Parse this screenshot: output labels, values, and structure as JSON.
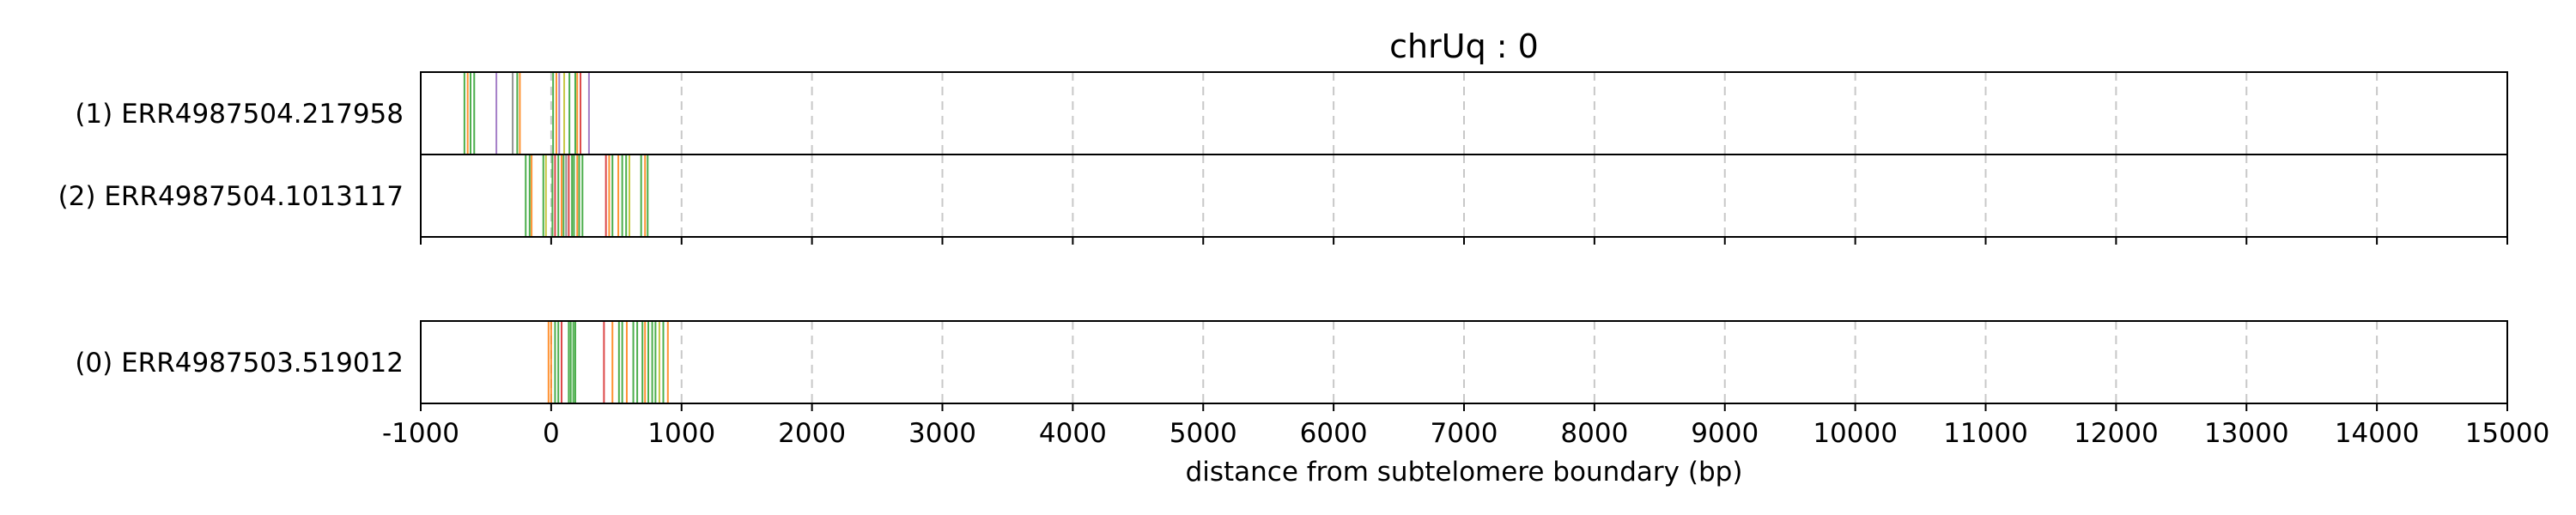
{
  "chart_data": {
    "type": "event-track",
    "title": "chrUq : 0",
    "xlabel": "distance from subtelomere boundary (bp)",
    "xlim": [
      -1000,
      15000
    ],
    "xticks": [
      "-1000",
      "0",
      "1000",
      "2000",
      "3000",
      "4000",
      "5000",
      "6000",
      "7000",
      "8000",
      "9000",
      "10000",
      "11000",
      "12000",
      "13000",
      "14000",
      "15000"
    ],
    "grid": "vertical dashed",
    "colors": {
      "green": "#2ca02c",
      "orange": "#ff7f0e",
      "purple": "#9467bd",
      "red": "#d62728",
      "olive": "#bcbd22",
      "gray": "#7f7f7f"
    },
    "groups": [
      {
        "tracks": [
          {
            "label": "(1) ERR4987504.217958",
            "marks": [
              {
                "x": -665,
                "c": "green"
              },
              {
                "x": -640,
                "c": "orange"
              },
              {
                "x": -618,
                "c": "green"
              },
              {
                "x": -590,
                "c": "green"
              },
              {
                "x": -420,
                "c": "purple"
              },
              {
                "x": -295,
                "c": "gray"
              },
              {
                "x": -260,
                "c": "green"
              },
              {
                "x": -240,
                "c": "orange"
              },
              {
                "x": 15,
                "c": "green"
              },
              {
                "x": 40,
                "c": "orange"
              },
              {
                "x": 62,
                "c": "purple"
              },
              {
                "x": 100,
                "c": "olive"
              },
              {
                "x": 140,
                "c": "green"
              },
              {
                "x": 185,
                "c": "green"
              },
              {
                "x": 200,
                "c": "orange"
              },
              {
                "x": 225,
                "c": "red"
              },
              {
                "x": 290,
                "c": "purple"
              }
            ]
          },
          {
            "label": "(2) ERR4987504.1013117",
            "marks": [
              {
                "x": -195,
                "c": "green"
              },
              {
                "x": -165,
                "c": "green"
              },
              {
                "x": -150,
                "c": "orange"
              },
              {
                "x": -60,
                "c": "green"
              },
              {
                "x": -40,
                "c": "olive"
              },
              {
                "x": 10,
                "c": "green"
              },
              {
                "x": 30,
                "c": "red"
              },
              {
                "x": 55,
                "c": "green"
              },
              {
                "x": 80,
                "c": "orange"
              },
              {
                "x": 95,
                "c": "green"
              },
              {
                "x": 115,
                "c": "gray"
              },
              {
                "x": 135,
                "c": "red"
              },
              {
                "x": 160,
                "c": "green"
              },
              {
                "x": 175,
                "c": "green"
              },
              {
                "x": 200,
                "c": "orange"
              },
              {
                "x": 215,
                "c": "green"
              },
              {
                "x": 240,
                "c": "green"
              },
              {
                "x": 420,
                "c": "red"
              },
              {
                "x": 445,
                "c": "orange"
              },
              {
                "x": 470,
                "c": "green"
              },
              {
                "x": 515,
                "c": "orange"
              },
              {
                "x": 545,
                "c": "green"
              },
              {
                "x": 575,
                "c": "green"
              },
              {
                "x": 600,
                "c": "olive"
              },
              {
                "x": 690,
                "c": "green"
              },
              {
                "x": 720,
                "c": "orange"
              },
              {
                "x": 740,
                "c": "green"
              }
            ]
          }
        ]
      },
      {
        "tracks": [
          {
            "label": "(0) ERR4987503.519012",
            "marks": [
              {
                "x": -20,
                "c": "orange"
              },
              {
                "x": 0,
                "c": "orange"
              },
              {
                "x": 30,
                "c": "green"
              },
              {
                "x": 55,
                "c": "green"
              },
              {
                "x": 80,
                "c": "red"
              },
              {
                "x": 135,
                "c": "green"
              },
              {
                "x": 150,
                "c": "green"
              },
              {
                "x": 170,
                "c": "green"
              },
              {
                "x": 185,
                "c": "green"
              },
              {
                "x": 405,
                "c": "red"
              },
              {
                "x": 470,
                "c": "orange"
              },
              {
                "x": 520,
                "c": "green"
              },
              {
                "x": 545,
                "c": "green"
              },
              {
                "x": 580,
                "c": "orange"
              },
              {
                "x": 630,
                "c": "green"
              },
              {
                "x": 660,
                "c": "green"
              },
              {
                "x": 700,
                "c": "green"
              },
              {
                "x": 720,
                "c": "orange"
              },
              {
                "x": 745,
                "c": "green"
              },
              {
                "x": 775,
                "c": "green"
              },
              {
                "x": 800,
                "c": "green"
              },
              {
                "x": 830,
                "c": "olive"
              },
              {
                "x": 860,
                "c": "green"
              },
              {
                "x": 895,
                "c": "orange"
              }
            ]
          }
        ]
      }
    ]
  }
}
